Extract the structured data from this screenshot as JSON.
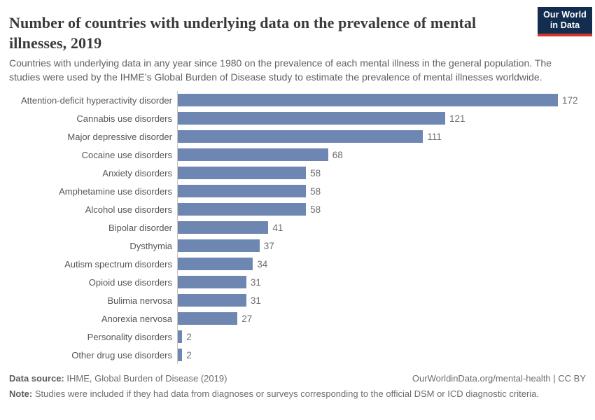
{
  "header": {
    "title": "Number of countries with underlying data on the prevalence of mental illnesses, 2019",
    "subtitle": "Countries with underlying data in any year since 1980 on the prevalence of each mental illness in the general population. The studies were used by the IHME’s Global Burden of Disease study to estimate the prevalence of mental illnesses worldwide.",
    "logo": {
      "line1": "Our World",
      "line2": "in Data"
    }
  },
  "chart_data": {
    "type": "bar",
    "orientation": "horizontal",
    "title": "Number of countries with underlying data on the prevalence of mental illnesses, 2019",
    "categories": [
      "Attention-deficit hyperactivity disorder",
      "Cannabis use disorders",
      "Major depressive disorder",
      "Cocaine use disorders",
      "Anxiety disorders",
      "Amphetamine use disorders",
      "Alcohol use disorders",
      "Bipolar disorder",
      "Dysthymia",
      "Autism spectrum disorders",
      "Opioid use disorders",
      "Bulimia nervosa",
      "Anorexia nervosa",
      "Personality disorders",
      "Other drug use disorders"
    ],
    "values": [
      172,
      121,
      111,
      68,
      58,
      58,
      58,
      41,
      37,
      34,
      31,
      31,
      27,
      2,
      2
    ],
    "xlabel": "",
    "ylabel": "",
    "xlim": [
      0,
      172
    ],
    "grid": false,
    "legend": "none",
    "value_labels_shown": true,
    "bar_color": "#6e87b2"
  },
  "footer": {
    "data_source_label": "Data source:",
    "data_source": "IHME, Global Burden of Disease (2019)",
    "attribution": "OurWorldinData.org/mental-health | CC BY",
    "note_label": "Note:",
    "note": "Studies were included if they had data from diagnoses or surveys corresponding to the official DSM or ICD diagnostic criteria."
  },
  "colors": {
    "bar": "#6e87b2",
    "axis_line": "#c8c8c8",
    "title_text": "#3a3a3a",
    "subtitle_text": "#616161",
    "label_text": "#54565a",
    "value_text": "#6e6e6e",
    "footer_text": "#6d6d6d",
    "logo_background": "#122d50",
    "logo_red": "#d1352b"
  }
}
